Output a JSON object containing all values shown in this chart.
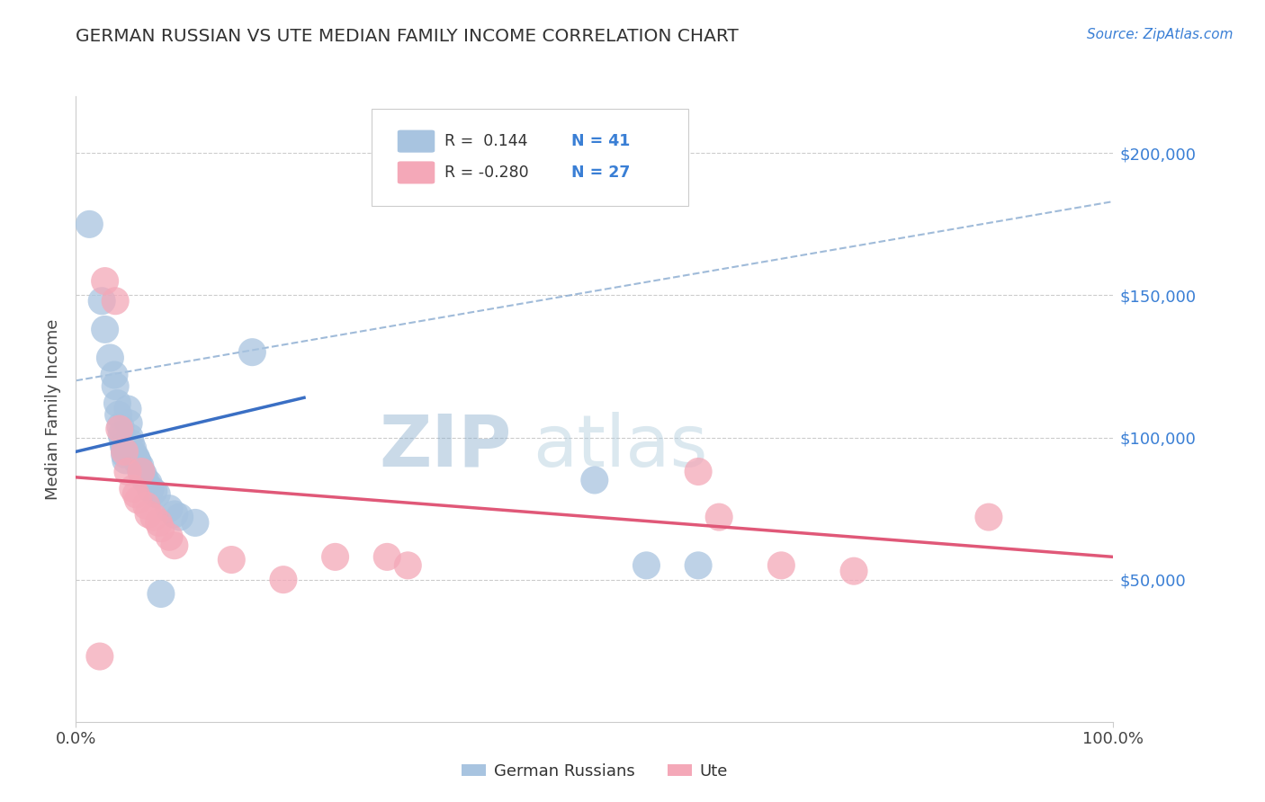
{
  "title": "GERMAN RUSSIAN VS UTE MEDIAN FAMILY INCOME CORRELATION CHART",
  "source_text": "Source: ZipAtlas.com",
  "ylabel": "Median Family Income",
  "watermark_zip": "ZIP",
  "watermark_atlas": "atlas",
  "xlim": [
    0.0,
    1.0
  ],
  "ylim": [
    0,
    220000
  ],
  "yticks": [
    50000,
    100000,
    150000,
    200000
  ],
  "ytick_labels": [
    "$50,000",
    "$100,000",
    "$150,000",
    "$200,000"
  ],
  "xtick_labels": [
    "0.0%",
    "100.0%"
  ],
  "blue_R": 0.144,
  "blue_N": 41,
  "pink_R": -0.28,
  "pink_N": 27,
  "blue_color": "#a8c4e0",
  "pink_color": "#f4a8b8",
  "trend_blue_color": "#3a6fc4",
  "trend_pink_color": "#e05878",
  "trend_gray_color": "#88aad0",
  "legend_label_blue": "German Russians",
  "legend_label_pink": "Ute",
  "blue_trend_x0": 0.0,
  "blue_trend_y0": 95000,
  "blue_trend_x1": 0.22,
  "blue_trend_y1": 114000,
  "pink_trend_x0": 0.0,
  "pink_trend_y0": 86000,
  "pink_trend_x1": 1.0,
  "pink_trend_y1": 58000,
  "gray_trend_x0": 0.0,
  "gray_trend_y0": 120000,
  "gray_trend_x1": 1.0,
  "gray_trend_y1": 183000,
  "blue_scatter_x": [
    0.013,
    0.025,
    0.028,
    0.033,
    0.037,
    0.038,
    0.04,
    0.041,
    0.043,
    0.044,
    0.045,
    0.046,
    0.047,
    0.047,
    0.048,
    0.05,
    0.051,
    0.052,
    0.053,
    0.055,
    0.056,
    0.058,
    0.059,
    0.06,
    0.062,
    0.063,
    0.065,
    0.067,
    0.07,
    0.072,
    0.075,
    0.078,
    0.082,
    0.09,
    0.095,
    0.1,
    0.115,
    0.17,
    0.5,
    0.55,
    0.6
  ],
  "blue_scatter_y": [
    175000,
    148000,
    138000,
    128000,
    122000,
    118000,
    112000,
    108000,
    104000,
    101000,
    99000,
    97000,
    96000,
    94000,
    92000,
    110000,
    105000,
    100000,
    98000,
    96000,
    94000,
    93000,
    92000,
    91000,
    90000,
    88000,
    87000,
    85000,
    84000,
    82000,
    81000,
    80000,
    45000,
    75000,
    73000,
    72000,
    70000,
    130000,
    85000,
    55000,
    55000
  ],
  "pink_scatter_x": [
    0.023,
    0.028,
    0.038,
    0.042,
    0.047,
    0.05,
    0.055,
    0.058,
    0.06,
    0.063,
    0.068,
    0.07,
    0.075,
    0.08,
    0.082,
    0.09,
    0.095,
    0.15,
    0.2,
    0.25,
    0.3,
    0.32,
    0.6,
    0.62,
    0.68,
    0.75,
    0.88
  ],
  "pink_scatter_y": [
    23000,
    155000,
    148000,
    103000,
    95000,
    88000,
    82000,
    80000,
    78000,
    88000,
    76000,
    73000,
    72000,
    70000,
    68000,
    65000,
    62000,
    57000,
    50000,
    58000,
    58000,
    55000,
    88000,
    72000,
    55000,
    53000,
    72000
  ]
}
